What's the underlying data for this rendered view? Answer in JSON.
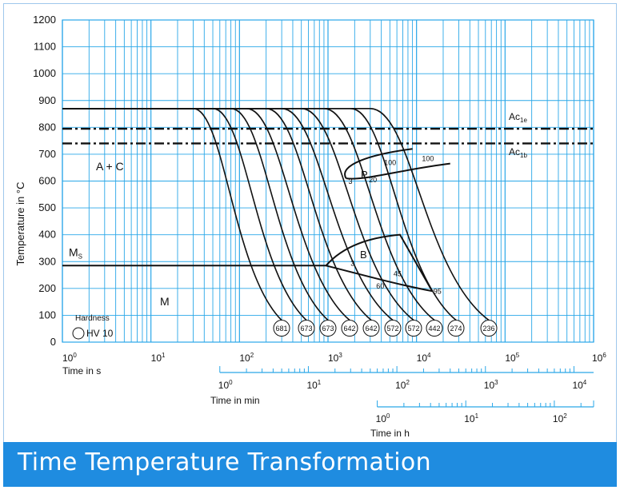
{
  "footer": {
    "title": "Time Temperature Transformation"
  },
  "chart_data": {
    "type": "line",
    "title": "",
    "ylabel": "Temperature in °C",
    "xlabel": "Time in s",
    "xscale": "log",
    "xlim_seconds": [
      1,
      1000000
    ],
    "ylim": [
      0,
      1200
    ],
    "yticks": [
      0,
      100,
      200,
      300,
      400,
      500,
      600,
      700,
      800,
      900,
      1000,
      1100,
      1200
    ],
    "xticks_seconds": [
      {
        "base": "10",
        "exp": "0"
      },
      {
        "base": "10",
        "exp": "1"
      },
      {
        "base": "10",
        "exp": "2"
      },
      {
        "base": "10",
        "exp": "3"
      },
      {
        "base": "10",
        "exp": "4"
      },
      {
        "base": "10",
        "exp": "5"
      },
      {
        "base": "10",
        "exp": "6"
      }
    ],
    "minutes_axis": {
      "label": "Time in min",
      "ticks": [
        {
          "base": "10",
          "exp": "0"
        },
        {
          "base": "10",
          "exp": "1"
        },
        {
          "base": "10",
          "exp": "2"
        },
        {
          "base": "10",
          "exp": "3"
        },
        {
          "base": "10",
          "exp": "4"
        }
      ]
    },
    "hours_axis": {
      "label": "Time in h",
      "ticks": [
        {
          "base": "10",
          "exp": "0"
        },
        {
          "base": "10",
          "exp": "1"
        },
        {
          "base": "10",
          "exp": "2"
        }
      ]
    },
    "grid": true,
    "lines": {
      "Ac1e": 795,
      "Ac1b": 740,
      "Ms": 285
    },
    "line_labels": {
      "Ac1e": {
        "main": "Ac",
        "sub": "1e"
      },
      "Ac1b": {
        "main": "Ac",
        "sub": "1b"
      },
      "Ms": {
        "main": "M",
        "sub": "S"
      }
    },
    "regions": {
      "austenite_carbide": "A + C",
      "martensite": "M",
      "pearlite": "P",
      "bainite": "B"
    },
    "hardness_legend": {
      "title": "Hardness",
      "item": "HV 10"
    },
    "cooling_curves": [
      {
        "hardness": "681",
        "start_time_s": 30,
        "end_time_s": 300,
        "end_temp": 130
      },
      {
        "hardness": "673",
        "start_time_s": 50,
        "end_time_s": 550,
        "end_temp": 100
      },
      {
        "hardness": "673",
        "start_time_s": 80,
        "end_time_s": 800,
        "end_temp": 100
      },
      {
        "hardness": "642",
        "start_time_s": 120,
        "end_time_s": 1200,
        "end_temp": 100
      },
      {
        "hardness": "642",
        "start_time_s": 200,
        "end_time_s": 2200,
        "end_temp": 100
      },
      {
        "hardness": "572",
        "start_time_s": 300,
        "end_time_s": 3600,
        "end_temp": 100
      },
      {
        "hardness": "572",
        "start_time_s": 500,
        "end_time_s": 5000,
        "end_temp": 100
      },
      {
        "hardness": "442",
        "start_time_s": 900,
        "end_time_s": 9000,
        "end_temp": 100
      },
      {
        "hardness": "274",
        "start_time_s": 1800,
        "end_time_s": 13000,
        "end_temp": 100
      },
      {
        "hardness": "236",
        "start_time_s": 3000,
        "end_time_s": 60000,
        "end_temp": 100
      }
    ],
    "austenitizing_temp": 870,
    "pearlite_phase_labels": [
      "3",
      "20",
      "100",
      "100"
    ],
    "bainite_phase_labels": [
      "3",
      "45",
      "60",
      "95"
    ]
  }
}
